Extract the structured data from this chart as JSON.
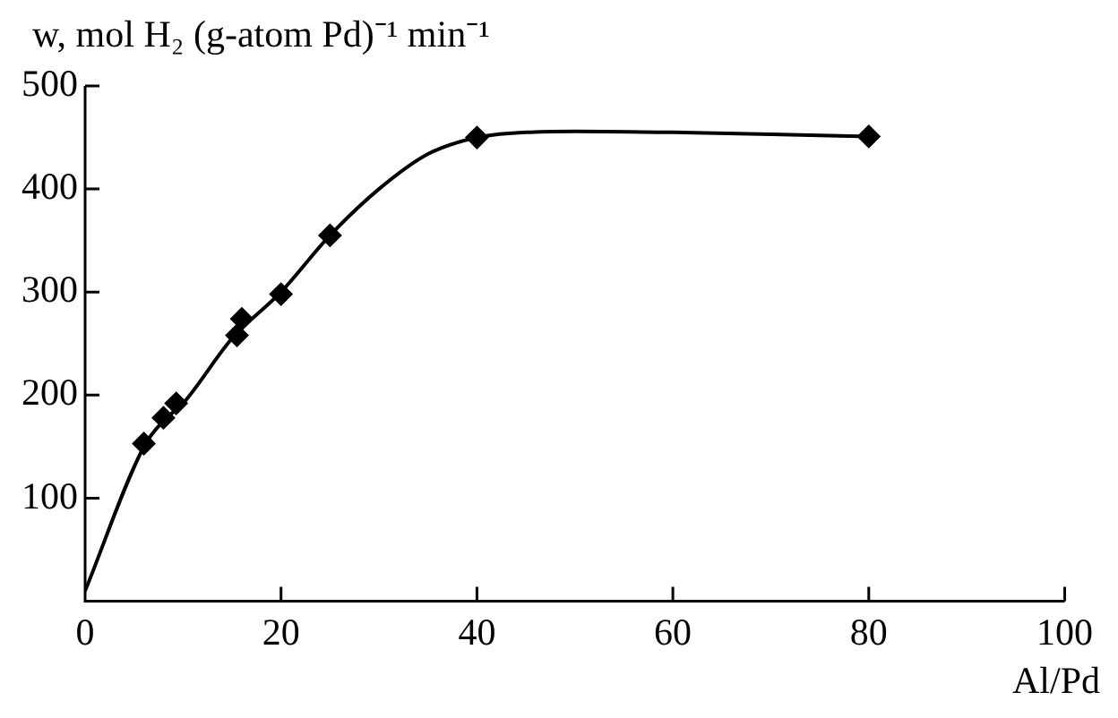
{
  "chart_data": {
    "type": "scatter",
    "ylabel": "w, mol H₂ (g-atom Pd)⁻¹ min⁻¹",
    "xlabel": "Al/Pd",
    "series": [
      {
        "type": "scatter",
        "color": "#000000",
        "marker": "diamond",
        "x": [
          6,
          8,
          9.3,
          15.5,
          16,
          20,
          25,
          40,
          80
        ],
        "values": [
          153,
          178,
          192,
          258,
          274,
          298,
          355,
          450,
          451
        ]
      },
      {
        "type": "line",
        "color": "#000000",
        "marker": "none",
        "line_style": "solid",
        "x": [
          0,
          6,
          8,
          10,
          15,
          20,
          25,
          30,
          35,
          40,
          45,
          50,
          60,
          70,
          80
        ],
        "values": [
          10,
          150,
          175,
          192,
          255,
          300,
          355,
          400,
          434,
          450,
          455,
          456,
          455,
          453,
          451
        ]
      }
    ],
    "xlim": [
      0,
      100
    ],
    "xticks": [
      0,
      20,
      40,
      60,
      80,
      100
    ],
    "ylim": [
      0,
      500
    ],
    "yticks": [
      100,
      200,
      300,
      400,
      500
    ],
    "grid": false,
    "legend": false
  }
}
